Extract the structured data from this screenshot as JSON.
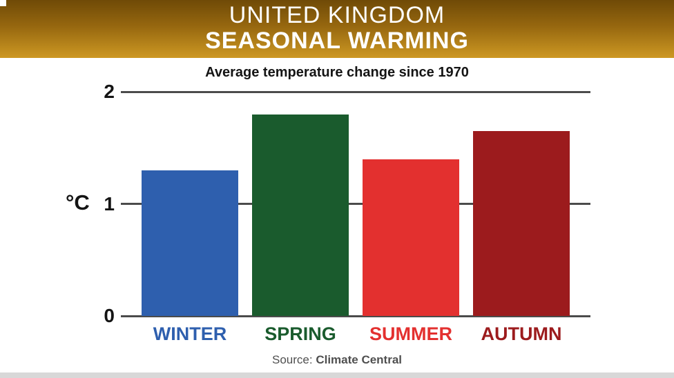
{
  "header": {
    "title_line1": "UNITED KINGDOM",
    "title_line2": "SEASONAL WARMING"
  },
  "subtitle": "Average temperature change since 1970",
  "axis": {
    "unit_label": "°C"
  },
  "chart_data": {
    "type": "bar",
    "title": "UNITED KINGDOM SEASONAL WARMING",
    "subtitle": "Average temperature change since 1970",
    "categories": [
      "WINTER",
      "SPRING",
      "SUMMER",
      "AUTUMN"
    ],
    "values": [
      1.3,
      1.8,
      1.4,
      1.65
    ],
    "colors": [
      "#2e5fae",
      "#1a5b2d",
      "#e3302f",
      "#9c1b1d"
    ],
    "xlabel": "",
    "ylabel": "°C",
    "yticks": [
      0,
      1,
      2
    ],
    "ylim": [
      0,
      2
    ],
    "grid": "horizontal",
    "legend": "none"
  },
  "source": {
    "prefix": "Source:",
    "name": "Climate Central"
  }
}
